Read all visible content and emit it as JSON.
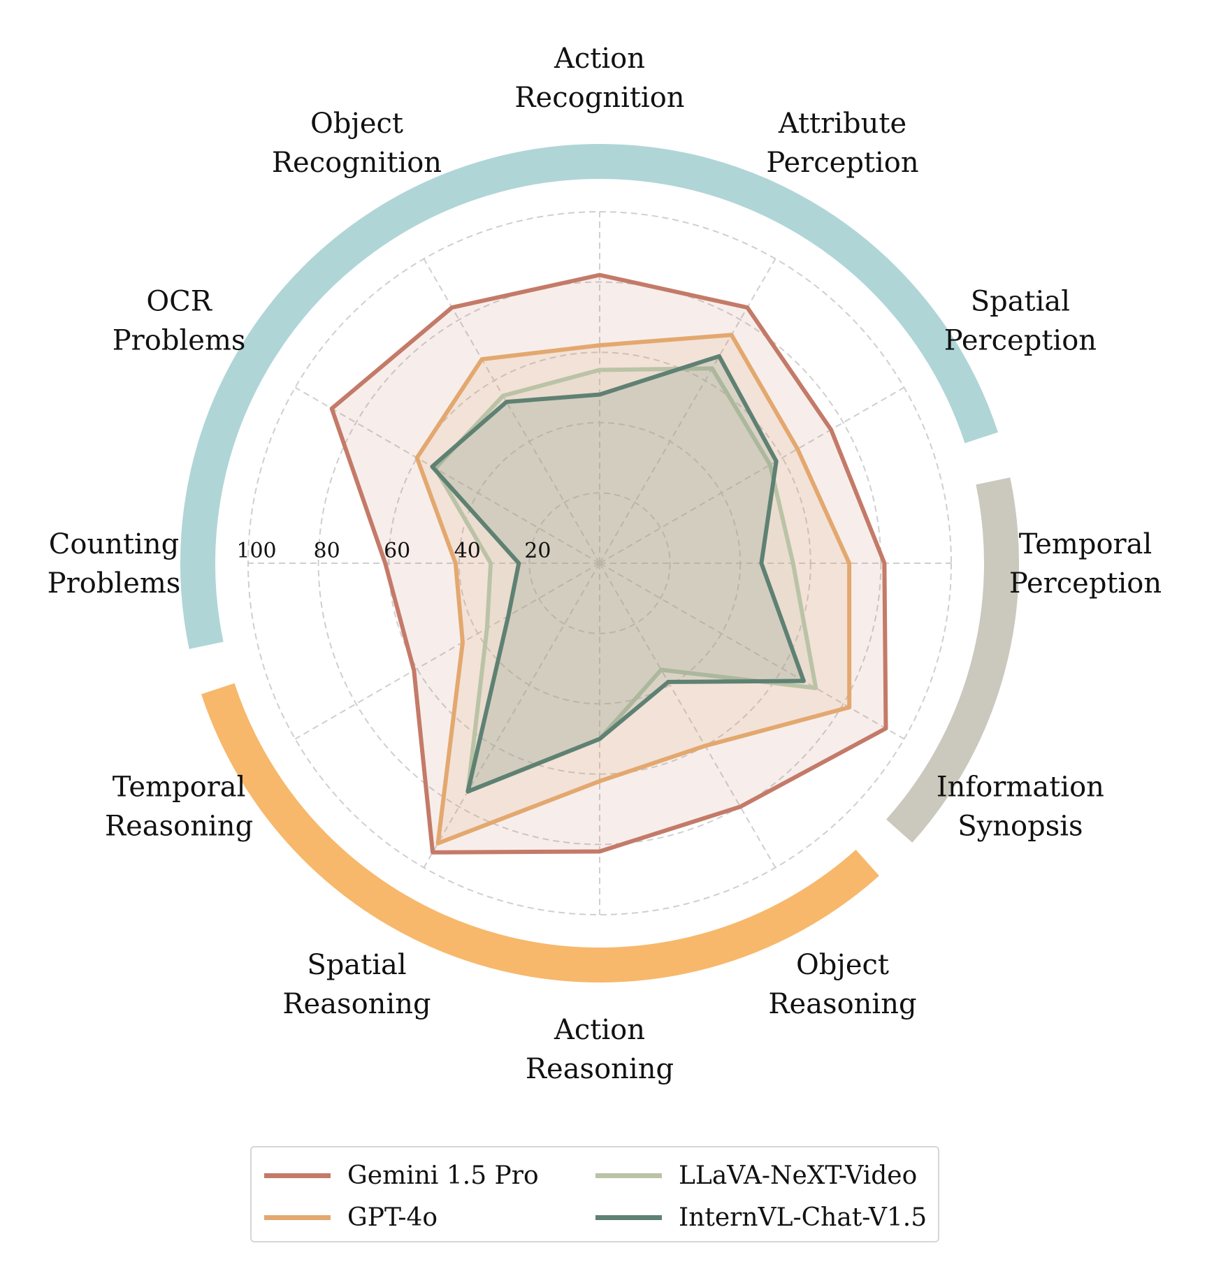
{
  "chart_data": {
    "type": "radar",
    "axes": [
      "Action Recognition",
      "Attribute Perception",
      "Spatial Perception",
      "Temporal Perception",
      "Information Synopsis",
      "Object Reasoning",
      "Action Reasoning",
      "Spatial Reasoning",
      "Temporal Reasoning",
      "Counting Problems",
      "OCR Problems",
      "Object Recognition"
    ],
    "axis_label_lines": [
      [
        "Action",
        "Recognition"
      ],
      [
        "Attribute",
        "Perception"
      ],
      [
        "Spatial",
        "Perception"
      ],
      [
        "Temporal",
        "Perception"
      ],
      [
        "Information",
        "Synopsis"
      ],
      [
        "Object",
        "Reasoning"
      ],
      [
        "Action",
        "Reasoning"
      ],
      [
        "Spatial",
        "Reasoning"
      ],
      [
        "Temporal",
        "Reasoning"
      ],
      [
        "Counting",
        "Problems"
      ],
      [
        "OCR",
        "Problems"
      ],
      [
        "Object",
        "Recognition"
      ]
    ],
    "rlim": [
      0,
      100
    ],
    "ticks": [
      20,
      40,
      60,
      80,
      100
    ],
    "tick_labels": [
      "20",
      "40",
      "60",
      "80",
      "100"
    ],
    "grid": true,
    "legend_position": "bottom",
    "series": [
      {
        "name": "Gemini 1.5 Pro",
        "color": "#c47a68",
        "values": [
          82,
          84,
          76,
          81,
          94,
          80,
          82,
          95,
          61,
          61,
          88,
          84
        ]
      },
      {
        "name": "GPT-4o",
        "color": "#e3a86f",
        "values": [
          62,
          75,
          65,
          71,
          82,
          60,
          62,
          92,
          45,
          41,
          60,
          67
        ]
      },
      {
        "name": "LLaVA-NeXT-Video",
        "color": "#bac3a6",
        "values": [
          55,
          64,
          56,
          55,
          71,
          35,
          50,
          75,
          37,
          31,
          54,
          55
        ]
      },
      {
        "name": "InternVL-Chat-V1.5",
        "color": "#5e8173",
        "values": [
          48,
          68,
          58,
          46,
          67,
          39,
          50,
          75,
          30,
          23,
          55,
          53
        ]
      }
    ],
    "category_arcs": [
      {
        "group": "perception",
        "color": "#afd5d7",
        "axes_from": 9,
        "axes_to": 3
      },
      {
        "group": "synopsis",
        "color": "#cbc8bd",
        "axes_from": 3,
        "axes_to": 5
      },
      {
        "group": "reasoning",
        "color": "#f7b86b",
        "axes_from": 5,
        "axes_to": 9
      }
    ]
  }
}
